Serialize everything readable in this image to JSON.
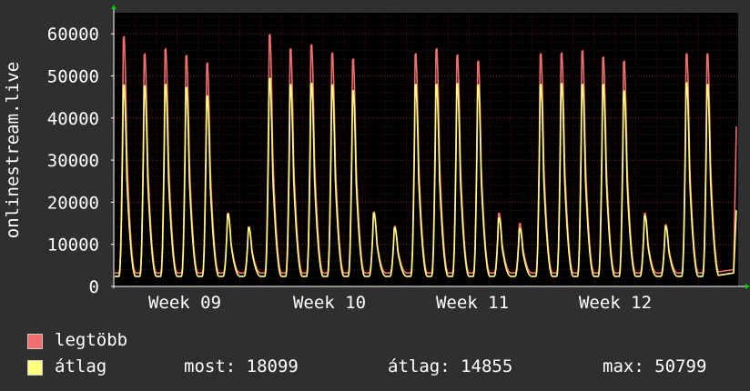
{
  "chart_data": {
    "type": "line",
    "ylabel": "onlinestream.live",
    "ylim": [
      0,
      65000
    ],
    "y_ticks": [
      0,
      10000,
      20000,
      30000,
      40000,
      50000,
      60000
    ],
    "x_tick_labels": [
      "Week 09",
      "Week 10",
      "Week 11",
      "Week 12"
    ],
    "grid": true,
    "background": "#000000",
    "grid_color": "#3c1414",
    "axis_color": "#ffffff",
    "series": [
      {
        "name": "legtöbb",
        "color": "#f06e6e",
        "daily_peaks": [
          61000,
          56800,
          58000,
          56400,
          54500,
          17800,
          14500,
          61500,
          58000,
          59000,
          57000,
          55500,
          18100,
          14600,
          56800,
          58000,
          56500,
          55000,
          17800,
          15300,
          56800,
          57000,
          57500,
          56000,
          55000,
          17800,
          15000,
          56800,
          56800
        ],
        "last_value": 38000
      },
      {
        "name": "átlag",
        "color": "#ffff80",
        "daily_peaks": [
          49200,
          49000,
          49300,
          48600,
          46500,
          17600,
          14300,
          50800,
          49300,
          49600,
          49200,
          47800,
          17800,
          14200,
          49300,
          49300,
          49500,
          49200,
          16700,
          14100,
          49300,
          49500,
          49300,
          49300,
          47700,
          17200,
          14600,
          49700,
          49300
        ],
        "last_value": 18099
      }
    ]
  },
  "legend": {
    "items": [
      {
        "label": "legtöbb",
        "color": "#f06e6e"
      },
      {
        "label": "átlag",
        "color": "#ffff80"
      }
    ],
    "stats": {
      "current": "most: 18099",
      "average": "átlag: 14855",
      "max": "max: 50799"
    }
  }
}
